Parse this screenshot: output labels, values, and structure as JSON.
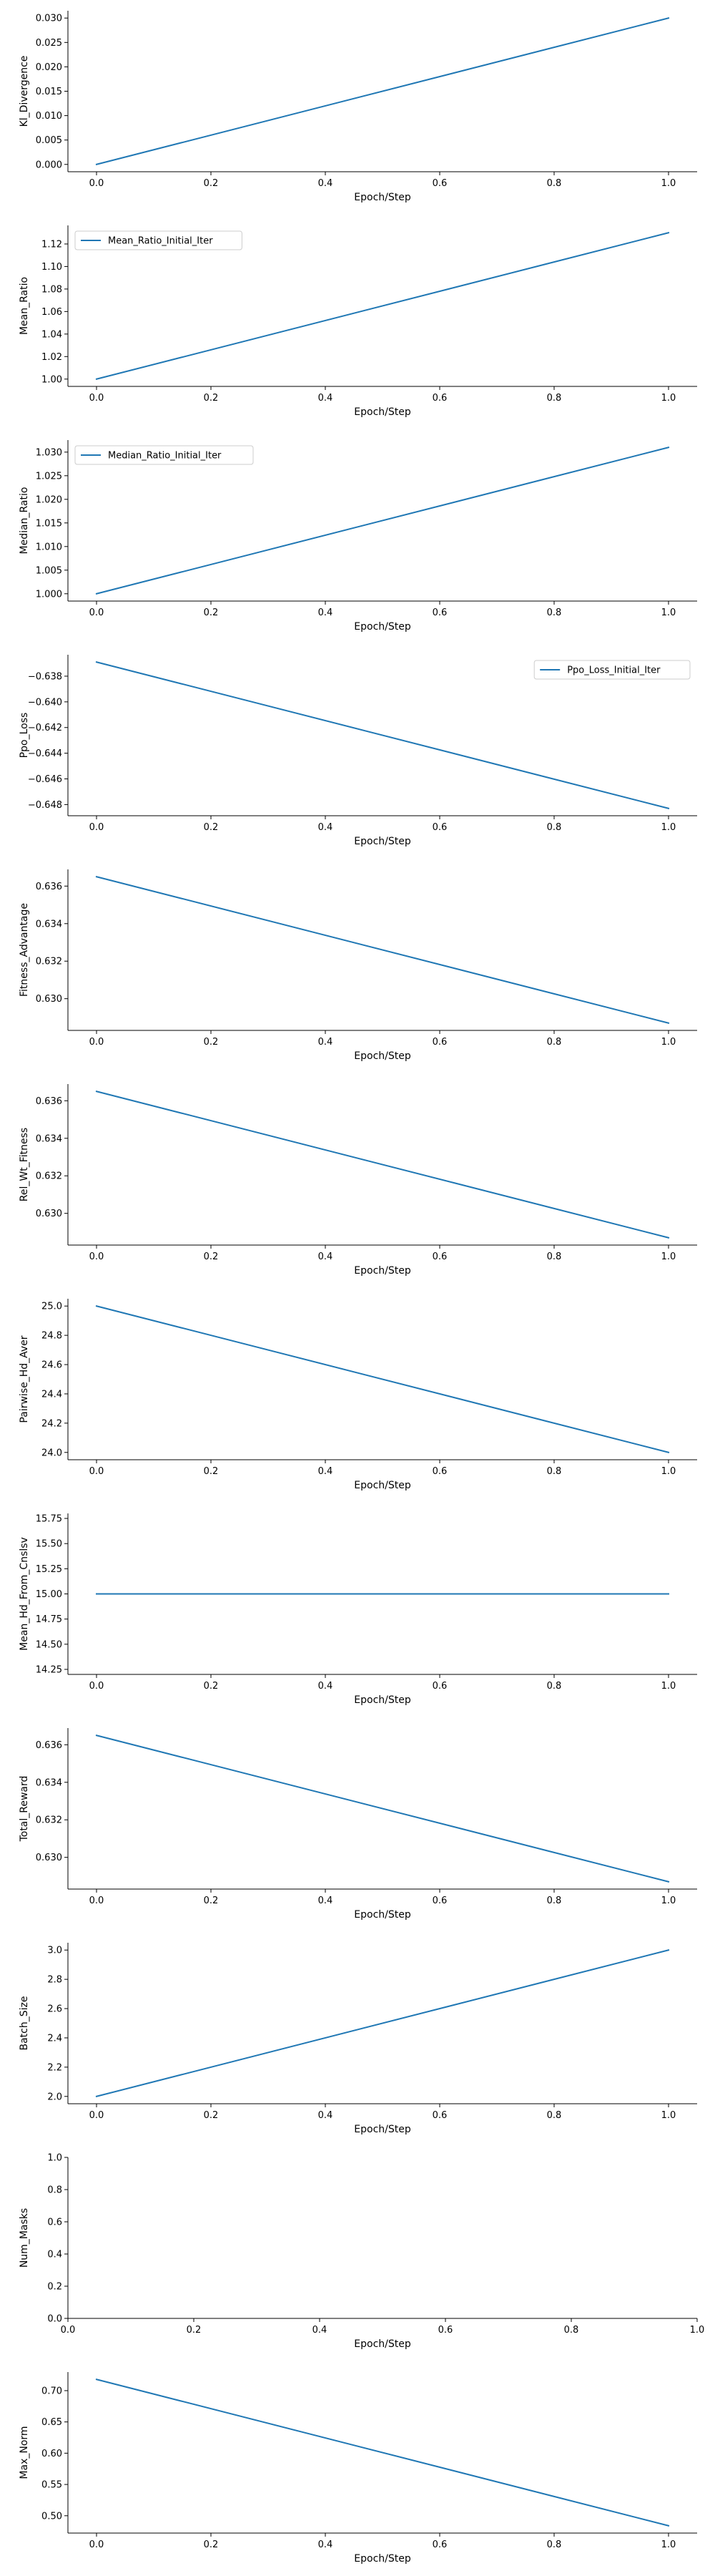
{
  "colors": {
    "line": "#1f77b4",
    "axis": "#000000",
    "legend_border": "#cccccc"
  },
  "chart_data": [
    {
      "type": "line",
      "xlabel": "Epoch/Step",
      "ylabel": "Kl_Divergence",
      "x": [
        0.0,
        1.0
      ],
      "series": [
        {
          "values": [
            0.0,
            0.03
          ]
        }
      ],
      "xlim": [
        -0.05,
        1.05
      ],
      "ylim": [
        -0.0015,
        0.0315
      ],
      "xticks": [
        0.0,
        0.2,
        0.4,
        0.6,
        0.8,
        1.0
      ],
      "xtick_labels": [
        "0.0",
        "0.2",
        "0.4",
        "0.6",
        "0.8",
        "1.0"
      ],
      "yticks": [
        0.0,
        0.005,
        0.01,
        0.015,
        0.02,
        0.025,
        0.03
      ],
      "ytick_labels": [
        "0.000",
        "0.005",
        "0.010",
        "0.015",
        "0.020",
        "0.025",
        "0.030"
      ],
      "grid": false,
      "legend": null
    },
    {
      "type": "line",
      "xlabel": "Epoch/Step",
      "ylabel": "Mean_Ratio",
      "x": [
        0.0,
        1.0
      ],
      "series": [
        {
          "name": "Mean_Ratio_Initial_Iter",
          "values": [
            1.0,
            1.13
          ]
        }
      ],
      "xlim": [
        -0.05,
        1.05
      ],
      "ylim": [
        0.9935,
        1.1365
      ],
      "xticks": [
        0.0,
        0.2,
        0.4,
        0.6,
        0.8,
        1.0
      ],
      "xtick_labels": [
        "0.0",
        "0.2",
        "0.4",
        "0.6",
        "0.8",
        "1.0"
      ],
      "yticks": [
        1.0,
        1.02,
        1.04,
        1.06,
        1.08,
        1.1,
        1.12
      ],
      "ytick_labels": [
        "1.00",
        "1.02",
        "1.04",
        "1.06",
        "1.08",
        "1.10",
        "1.12"
      ],
      "grid": false,
      "legend": "top-left"
    },
    {
      "type": "line",
      "xlabel": "Epoch/Step",
      "ylabel": "Median_Ratio",
      "x": [
        0.0,
        1.0
      ],
      "series": [
        {
          "name": "Median_Ratio_Initial_Iter",
          "values": [
            1.0,
            1.031
          ]
        }
      ],
      "xlim": [
        -0.05,
        1.05
      ],
      "ylim": [
        0.99845,
        1.03255
      ],
      "xticks": [
        0.0,
        0.2,
        0.4,
        0.6,
        0.8,
        1.0
      ],
      "xtick_labels": [
        "0.0",
        "0.2",
        "0.4",
        "0.6",
        "0.8",
        "1.0"
      ],
      "yticks": [
        1.0,
        1.005,
        1.01,
        1.015,
        1.02,
        1.025,
        1.03
      ],
      "ytick_labels": [
        "1.000",
        "1.005",
        "1.010",
        "1.015",
        "1.020",
        "1.025",
        "1.030"
      ],
      "grid": false,
      "legend": "top-left"
    },
    {
      "type": "line",
      "xlabel": "Epoch/Step",
      "ylabel": "Ppo_Loss",
      "x": [
        0.0,
        1.0
      ],
      "series": [
        {
          "name": "Ppo_Loss_Initial_Iter",
          "values": [
            -0.6369,
            -0.6483
          ]
        }
      ],
      "xlim": [
        -0.05,
        1.05
      ],
      "ylim": [
        -0.64887,
        -0.63633
      ],
      "xticks": [
        0.0,
        0.2,
        0.4,
        0.6,
        0.8,
        1.0
      ],
      "xtick_labels": [
        "0.0",
        "0.2",
        "0.4",
        "0.6",
        "0.8",
        "1.0"
      ],
      "yticks": [
        -0.638,
        -0.64,
        -0.642,
        -0.644,
        -0.646,
        -0.648
      ],
      "ytick_labels": [
        "−0.638",
        "−0.640",
        "−0.642",
        "−0.644",
        "−0.646",
        "−0.648"
      ],
      "grid": false,
      "legend": "top-right"
    },
    {
      "type": "line",
      "xlabel": "Epoch/Step",
      "ylabel": "Fitness_Advantage",
      "x": [
        0.0,
        1.0
      ],
      "series": [
        {
          "values": [
            0.6365,
            0.6287
          ]
        }
      ],
      "xlim": [
        -0.05,
        1.05
      ],
      "ylim": [
        0.62831,
        0.63689
      ],
      "xticks": [
        0.0,
        0.2,
        0.4,
        0.6,
        0.8,
        1.0
      ],
      "xtick_labels": [
        "0.0",
        "0.2",
        "0.4",
        "0.6",
        "0.8",
        "1.0"
      ],
      "yticks": [
        0.63,
        0.632,
        0.634,
        0.636
      ],
      "ytick_labels": [
        "0.630",
        "0.632",
        "0.634",
        "0.636"
      ],
      "grid": false,
      "legend": null
    },
    {
      "type": "line",
      "xlabel": "Epoch/Step",
      "ylabel": "Rel_Wt_Fitness",
      "x": [
        0.0,
        1.0
      ],
      "series": [
        {
          "values": [
            0.6365,
            0.6287
          ]
        }
      ],
      "xlim": [
        -0.05,
        1.05
      ],
      "ylim": [
        0.62831,
        0.63689
      ],
      "xticks": [
        0.0,
        0.2,
        0.4,
        0.6,
        0.8,
        1.0
      ],
      "xtick_labels": [
        "0.0",
        "0.2",
        "0.4",
        "0.6",
        "0.8",
        "1.0"
      ],
      "yticks": [
        0.63,
        0.632,
        0.634,
        0.636
      ],
      "ytick_labels": [
        "0.630",
        "0.632",
        "0.634",
        "0.636"
      ],
      "grid": false,
      "legend": null
    },
    {
      "type": "line",
      "xlabel": "Epoch/Step",
      "ylabel": "Pairwise_Hd_Aver",
      "x": [
        0.0,
        1.0
      ],
      "series": [
        {
          "values": [
            25.0,
            24.0
          ]
        }
      ],
      "xlim": [
        -0.05,
        1.05
      ],
      "ylim": [
        23.95,
        25.05
      ],
      "xticks": [
        0.0,
        0.2,
        0.4,
        0.6,
        0.8,
        1.0
      ],
      "xtick_labels": [
        "0.0",
        "0.2",
        "0.4",
        "0.6",
        "0.8",
        "1.0"
      ],
      "yticks": [
        24.0,
        24.2,
        24.4,
        24.6,
        24.8,
        25.0
      ],
      "ytick_labels": [
        "24.0",
        "24.2",
        "24.4",
        "24.6",
        "24.8",
        "25.0"
      ],
      "grid": false,
      "legend": null
    },
    {
      "type": "line",
      "xlabel": "Epoch/Step",
      "ylabel": "Mean_Hd_From_Cnslsv",
      "x": [
        0.0,
        1.0
      ],
      "series": [
        {
          "values": [
            15.0,
            15.0
          ]
        }
      ],
      "xlim": [
        -0.05,
        1.05
      ],
      "ylim": [
        14.2,
        15.8
      ],
      "xticks": [
        0.0,
        0.2,
        0.4,
        0.6,
        0.8,
        1.0
      ],
      "xtick_labels": [
        "0.0",
        "0.2",
        "0.4",
        "0.6",
        "0.8",
        "1.0"
      ],
      "yticks": [
        14.25,
        14.5,
        14.75,
        15.0,
        15.25,
        15.5,
        15.75
      ],
      "ytick_labels": [
        "14.25",
        "14.50",
        "14.75",
        "15.00",
        "15.25",
        "15.50",
        "15.75"
      ],
      "grid": false,
      "legend": null
    },
    {
      "type": "line",
      "xlabel": "Epoch/Step",
      "ylabel": "Total_Reward",
      "x": [
        0.0,
        1.0
      ],
      "series": [
        {
          "values": [
            0.6365,
            0.6287
          ]
        }
      ],
      "xlim": [
        -0.05,
        1.05
      ],
      "ylim": [
        0.62831,
        0.63689
      ],
      "xticks": [
        0.0,
        0.2,
        0.4,
        0.6,
        0.8,
        1.0
      ],
      "xtick_labels": [
        "0.0",
        "0.2",
        "0.4",
        "0.6",
        "0.8",
        "1.0"
      ],
      "yticks": [
        0.63,
        0.632,
        0.634,
        0.636
      ],
      "ytick_labels": [
        "0.630",
        "0.632",
        "0.634",
        "0.636"
      ],
      "grid": false,
      "legend": null
    },
    {
      "type": "line",
      "xlabel": "Epoch/Step",
      "ylabel": "Batch_Size",
      "x": [
        0.0,
        1.0
      ],
      "series": [
        {
          "values": [
            2.0,
            3.0
          ]
        }
      ],
      "xlim": [
        -0.05,
        1.05
      ],
      "ylim": [
        1.95,
        3.05
      ],
      "xticks": [
        0.0,
        0.2,
        0.4,
        0.6,
        0.8,
        1.0
      ],
      "xtick_labels": [
        "0.0",
        "0.2",
        "0.4",
        "0.6",
        "0.8",
        "1.0"
      ],
      "yticks": [
        2.0,
        2.2,
        2.4,
        2.6,
        2.8,
        3.0
      ],
      "ytick_labels": [
        "2.0",
        "2.2",
        "2.4",
        "2.6",
        "2.8",
        "3.0"
      ],
      "grid": false,
      "legend": null
    },
    {
      "type": "line",
      "xlabel": "Epoch/Step",
      "ylabel": "Num_Masks",
      "x": [],
      "series": [],
      "xlim": [
        0.0,
        1.0
      ],
      "ylim": [
        0.0,
        1.0
      ],
      "xticks": [
        0.0,
        0.2,
        0.4,
        0.6,
        0.8,
        1.0
      ],
      "xtick_labels": [
        "0.0",
        "0.2",
        "0.4",
        "0.6",
        "0.8",
        "1.0"
      ],
      "yticks": [
        0.0,
        0.2,
        0.4,
        0.6,
        0.8,
        1.0
      ],
      "ytick_labels": [
        "0.0",
        "0.2",
        "0.4",
        "0.6",
        "0.8",
        "1.0"
      ],
      "grid": false,
      "legend": null
    },
    {
      "type": "line",
      "xlabel": "Epoch/Step",
      "ylabel": "Max_Norm",
      "x": [
        0.0,
        1.0
      ],
      "series": [
        {
          "values": [
            0.718,
            0.484
          ]
        }
      ],
      "xlim": [
        -0.05,
        1.05
      ],
      "ylim": [
        0.4723,
        0.7297
      ],
      "xticks": [
        0.0,
        0.2,
        0.4,
        0.6,
        0.8,
        1.0
      ],
      "xtick_labels": [
        "0.0",
        "0.2",
        "0.4",
        "0.6",
        "0.8",
        "1.0"
      ],
      "yticks": [
        0.5,
        0.55,
        0.6,
        0.65,
        0.7
      ],
      "ytick_labels": [
        "0.50",
        "0.55",
        "0.60",
        "0.65",
        "0.70"
      ],
      "grid": false,
      "legend": null
    }
  ]
}
